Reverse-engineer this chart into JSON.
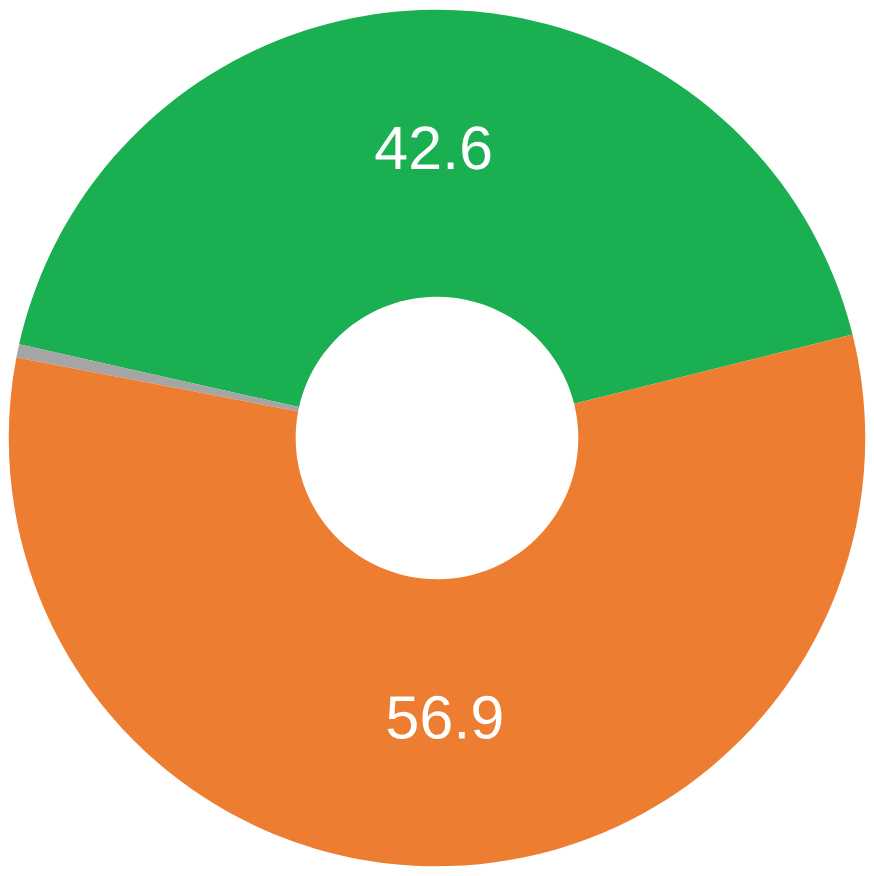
{
  "chart_data": {
    "type": "donut",
    "categories": [
      null,
      null,
      null
    ],
    "values": [
      42.6,
      0.5,
      56.9
    ],
    "colors": [
      "#1aaf50",
      "#a5a5a5",
      "#ed7d31"
    ],
    "value_labels": [
      "42.6",
      null,
      "56.9"
    ],
    "legend": false
  }
}
